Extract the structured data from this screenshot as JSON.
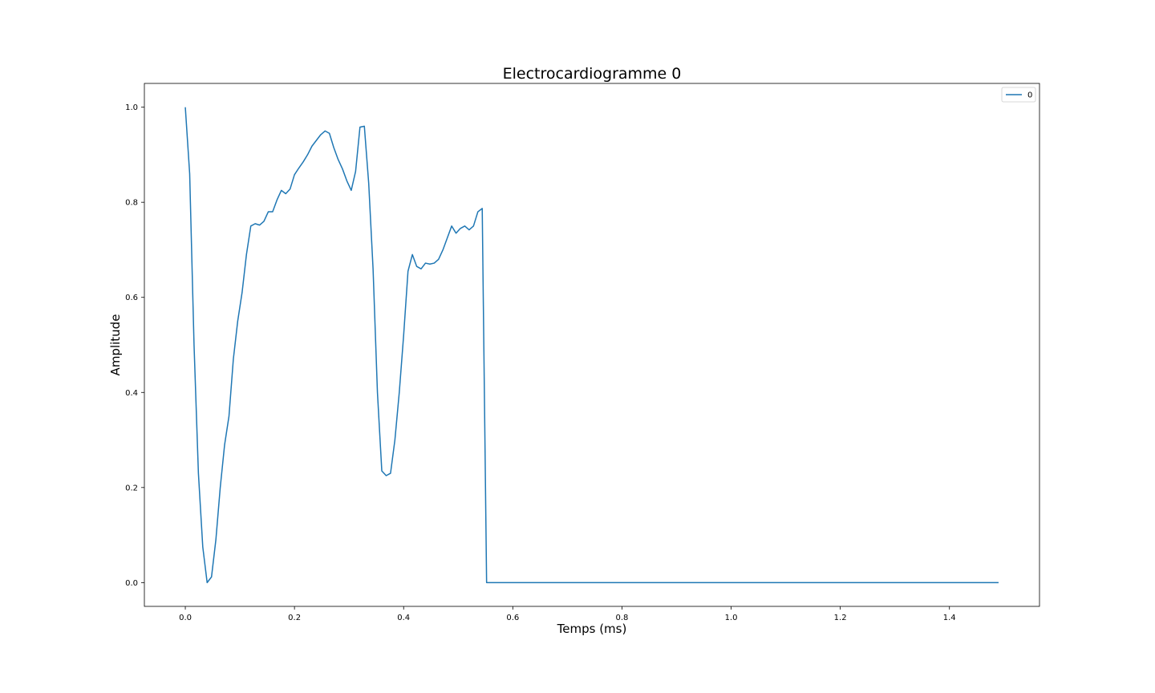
{
  "chart_data": {
    "type": "line",
    "title": "Electrocardiogramme 0",
    "xlabel": "Temps (ms)",
    "ylabel": "Amplitude",
    "xlim": [
      -0.075,
      1.565
    ],
    "ylim": [
      -0.05,
      1.05
    ],
    "xticks": [
      0.0,
      0.2,
      0.4,
      0.6,
      0.8,
      1.0,
      1.2,
      1.4
    ],
    "xtick_labels": [
      "0.0",
      "0.2",
      "0.4",
      "0.6",
      "0.8",
      "1.0",
      "1.2",
      "1.4"
    ],
    "yticks": [
      0.0,
      0.2,
      0.4,
      0.6,
      0.8,
      1.0
    ],
    "ytick_labels": [
      "0.0",
      "0.2",
      "0.4",
      "0.6",
      "0.8",
      "1.0"
    ],
    "grid": false,
    "legend_position": "upper right",
    "series": [
      {
        "name": "0",
        "color": "#1f77b4",
        "x": [
          0.0,
          0.008,
          0.016,
          0.024,
          0.032,
          0.04,
          0.048,
          0.056,
          0.064,
          0.072,
          0.08,
          0.088,
          0.096,
          0.104,
          0.112,
          0.12,
          0.128,
          0.136,
          0.144,
          0.152,
          0.16,
          0.168,
          0.176,
          0.184,
          0.192,
          0.2,
          0.208,
          0.216,
          0.224,
          0.232,
          0.24,
          0.248,
          0.256,
          0.264,
          0.272,
          0.28,
          0.288,
          0.296,
          0.304,
          0.312,
          0.32,
          0.328,
          0.336,
          0.344,
          0.352,
          0.36,
          0.368,
          0.376,
          0.384,
          0.392,
          0.4,
          0.408,
          0.416,
          0.424,
          0.432,
          0.44,
          0.448,
          0.456,
          0.464,
          0.472,
          0.48,
          0.488,
          0.496,
          0.504,
          0.512,
          0.52,
          0.528,
          0.536,
          0.544,
          0.552,
          0.56,
          1.49
        ],
        "y": [
          1.0,
          0.86,
          0.5,
          0.23,
          0.075,
          0.0,
          0.012,
          0.09,
          0.2,
          0.29,
          0.35,
          0.47,
          0.55,
          0.61,
          0.69,
          0.75,
          0.755,
          0.752,
          0.76,
          0.78,
          0.78,
          0.805,
          0.825,
          0.818,
          0.828,
          0.858,
          0.872,
          0.885,
          0.9,
          0.918,
          0.93,
          0.942,
          0.95,
          0.945,
          0.915,
          0.89,
          0.87,
          0.845,
          0.825,
          0.865,
          0.958,
          0.96,
          0.84,
          0.66,
          0.4,
          0.235,
          0.225,
          0.23,
          0.3,
          0.4,
          0.52,
          0.655,
          0.69,
          0.665,
          0.66,
          0.672,
          0.67,
          0.672,
          0.68,
          0.7,
          0.725,
          0.75,
          0.735,
          0.745,
          0.75,
          0.742,
          0.75,
          0.78,
          0.787,
          0.0,
          0.0,
          0.0
        ]
      }
    ]
  }
}
